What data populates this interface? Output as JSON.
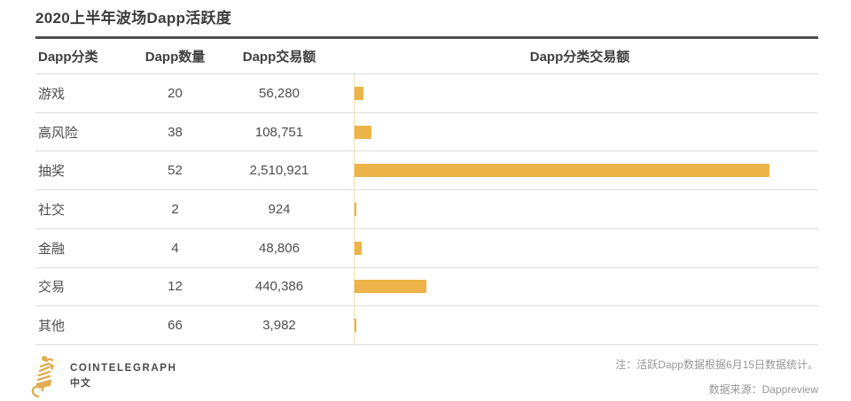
{
  "title": "2020上半年波场Dapp活跃度",
  "table": {
    "headers": [
      "Dapp分类",
      "Dapp数量",
      "Dapp交易额",
      "Dapp分类交易额"
    ],
    "rows": [
      {
        "category": "游戏",
        "count": "20",
        "volume": "56,280",
        "volume_value": 56280
      },
      {
        "category": "高风险",
        "count": "38",
        "volume": "108,751",
        "volume_value": 108751
      },
      {
        "category": "抽奖",
        "count": "52",
        "volume": "2,510,921",
        "volume_value": 2510921
      },
      {
        "category": "社交",
        "count": "2",
        "volume": "924",
        "volume_value": 924
      },
      {
        "category": "金融",
        "count": "4",
        "volume": "48,806",
        "volume_value": 48806
      },
      {
        "category": "交易",
        "count": "12",
        "volume": "440,386",
        "volume_value": 440386
      },
      {
        "category": "其他",
        "count": "66",
        "volume": "3,982",
        "volume_value": 3982
      }
    ]
  },
  "chart_data": {
    "type": "bar",
    "orientation": "horizontal",
    "title": "Dapp分类交易额",
    "categories": [
      "游戏",
      "高风险",
      "抽奖",
      "社交",
      "金融",
      "交易",
      "其他"
    ],
    "values": [
      56280,
      108751,
      2510921,
      924,
      48806,
      440386,
      3982
    ],
    "xlim": [
      0,
      2510921
    ],
    "grid": false,
    "legend": "none",
    "bar_color": "#ECB449"
  },
  "footer": {
    "logo_text": "COINTELEGRAPH",
    "logo_subtext": "中文",
    "note": "注：活跃Dapp数据根据6月15日数据统计。",
    "source": "数据来源：Dappreview"
  },
  "colors": {
    "bar": "#ECB449",
    "axis_line": "#F5DFA9",
    "title_rule": "#4F4F4F",
    "row_rule": "#DEDEDE",
    "logo_gold": "#DFAC4E"
  }
}
